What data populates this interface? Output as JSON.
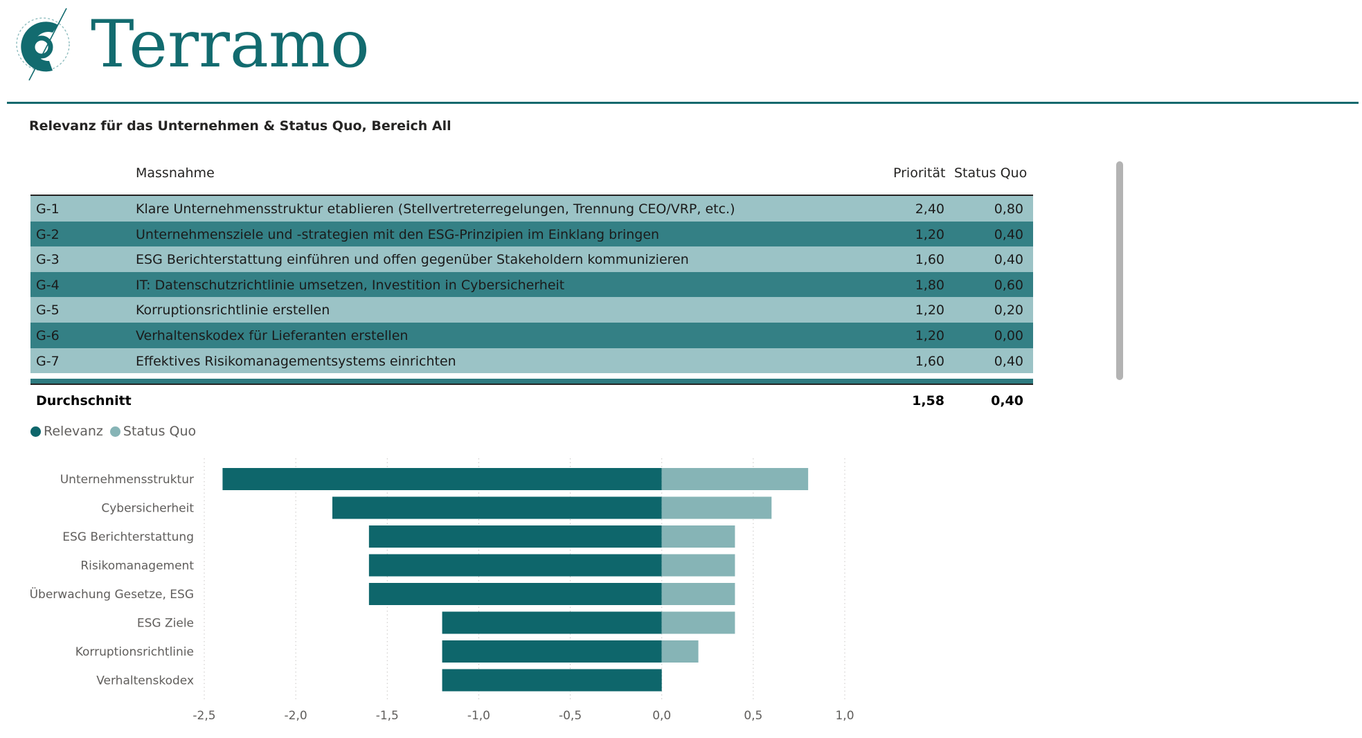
{
  "brand": {
    "name": "Terramo"
  },
  "section_title": "Relevanz für das Unternehmen & Status Quo, Bereich All",
  "table": {
    "headers": {
      "id": "",
      "massnahme": "Massnahme",
      "prioritaet": "Priorität",
      "status_quo": "Status Quo"
    },
    "rows": [
      {
        "id": "G-1",
        "massnahme": "Klare Unternehmensstruktur etablieren (Stellvertreterregelungen, Trennung CEO/VRP, etc.)",
        "prioritaet": "2,40",
        "status_quo": "0,80"
      },
      {
        "id": "G-2",
        "massnahme": "Unternehmensziele und -strategien mit den ESG-Prinzipien im Einklang bringen",
        "prioritaet": "1,20",
        "status_quo": "0,40"
      },
      {
        "id": "G-3",
        "massnahme": "ESG Berichterstattung einführen und offen gegenüber Stakeholdern kommunizieren",
        "prioritaet": "1,60",
        "status_quo": "0,40"
      },
      {
        "id": "G-4",
        "massnahme": "IT: Datenschutzrichtlinie umsetzen, Investition in Cybersicherheit",
        "prioritaet": "1,80",
        "status_quo": "0,60"
      },
      {
        "id": "G-5",
        "massnahme": "Korruptionsrichtlinie erstellen",
        "prioritaet": "1,20",
        "status_quo": "0,20"
      },
      {
        "id": "G-6",
        "massnahme": "Verhaltenskodex für Lieferanten erstellen",
        "prioritaet": "1,20",
        "status_quo": "0,00"
      },
      {
        "id": "G-7",
        "massnahme": "Effektives Risikomanagementsystems einrichten",
        "prioritaet": "1,60",
        "status_quo": "0,40"
      }
    ],
    "total": {
      "label": "Durchschnitt",
      "prioritaet": "1,58",
      "status_quo": "0,40"
    }
  },
  "chart_data": {
    "type": "bar",
    "orientation": "horizontal",
    "categories": [
      "Unternehmensstruktur",
      "Cybersicherheit",
      "ESG Berichterstattung",
      "Risikomanagement",
      "Überwachung Gesetze, ESG",
      "ESG Ziele",
      "Korruptionsrichtlinie",
      "Verhaltenskodex"
    ],
    "series": [
      {
        "name": "Relevanz",
        "color": "#0e666b",
        "values": [
          -2.4,
          -1.8,
          -1.6,
          -1.6,
          -1.6,
          -1.2,
          -1.2,
          -1.2
        ]
      },
      {
        "name": "Status Quo",
        "color": "#86b4b6",
        "values": [
          0.8,
          0.6,
          0.4,
          0.4,
          0.4,
          0.4,
          0.2,
          0.0
        ]
      }
    ],
    "xlim": [
      -2.5,
      1.0
    ],
    "xticks": [
      -2.5,
      -2.0,
      -1.5,
      -1.0,
      -0.5,
      0.0,
      0.5,
      1.0
    ],
    "xtick_labels": [
      "-2,5",
      "-2,0",
      "-1,5",
      "-1,0",
      "-0,5",
      "0,0",
      "0,5",
      "1,0"
    ],
    "stacked": true,
    "grid": "vertical dotted",
    "legend": "top-left",
    "title": "",
    "xlabel": "",
    "ylabel": ""
  }
}
